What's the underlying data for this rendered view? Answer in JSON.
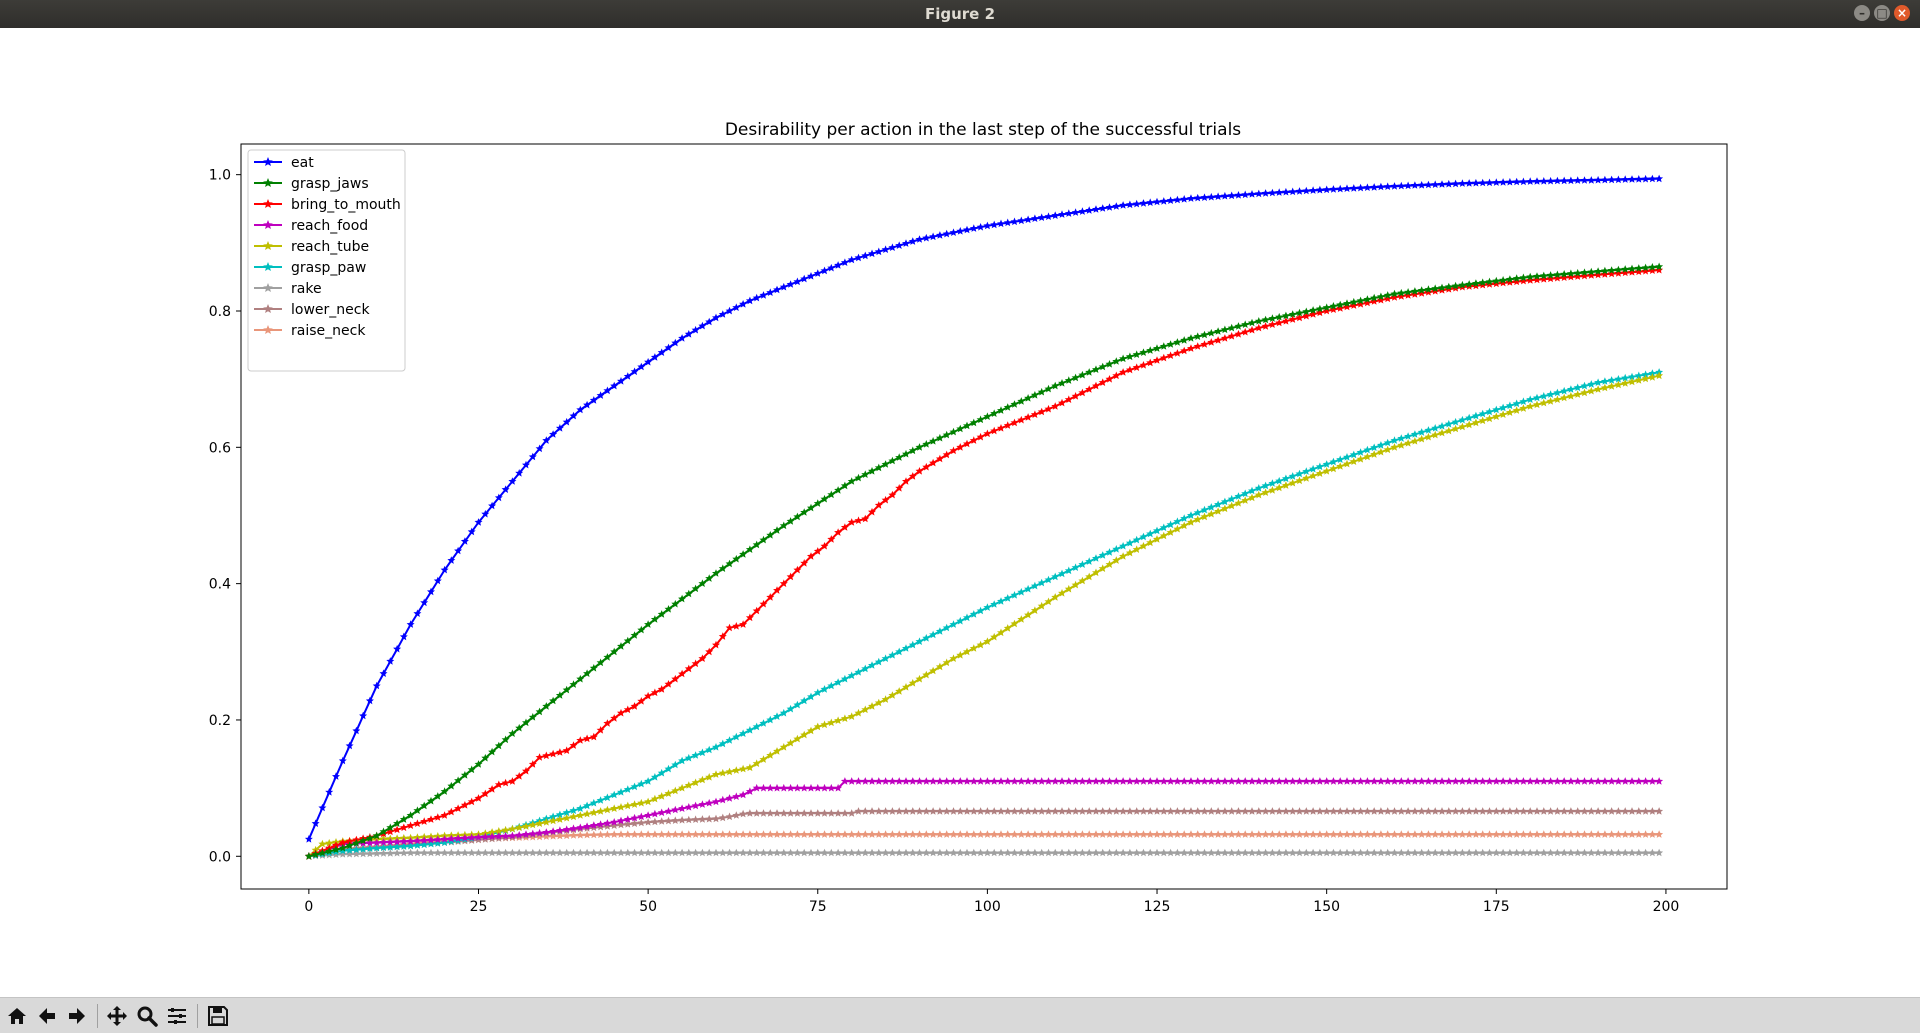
{
  "window": {
    "title": "Figure 2"
  },
  "toolbar": {
    "buttons": [
      {
        "name": "home-button",
        "icon": "home-icon"
      },
      {
        "name": "back-button",
        "icon": "arrow-left-icon"
      },
      {
        "name": "forward-button",
        "icon": "arrow-right-icon"
      },
      {
        "name": "pan-button",
        "icon": "move-icon"
      },
      {
        "name": "zoom-button",
        "icon": "magnifier-icon"
      },
      {
        "name": "configure-subplots-button",
        "icon": "sliders-icon"
      },
      {
        "name": "save-button",
        "icon": "floppy-disk-icon"
      }
    ]
  },
  "chart_data": {
    "type": "line",
    "title": "Desirability per action in the last step of the successful trials",
    "xlabel": "",
    "ylabel": "",
    "xlim": [
      -10,
      209
    ],
    "ylim": [
      -0.048,
      1.045
    ],
    "xticks": [
      0,
      25,
      50,
      75,
      100,
      125,
      150,
      175,
      200
    ],
    "yticks": [
      0.0,
      0.2,
      0.4,
      0.6,
      0.8,
      1.0
    ],
    "ytick_labels": [
      "0.0",
      "0.2",
      "0.4",
      "0.6",
      "0.8",
      "1.0"
    ],
    "grid": false,
    "legend_position": "upper left",
    "marker": "star",
    "n_points": 200,
    "series": [
      {
        "name": "eat",
        "color": "#0000ff",
        "x": [
          0,
          5,
          10,
          15,
          20,
          25,
          30,
          35,
          40,
          45,
          50,
          55,
          60,
          65,
          70,
          75,
          80,
          85,
          90,
          95,
          100,
          110,
          120,
          130,
          140,
          150,
          160,
          170,
          180,
          190,
          199
        ],
        "y": [
          0.025,
          0.14,
          0.25,
          0.34,
          0.42,
          0.49,
          0.55,
          0.61,
          0.655,
          0.69,
          0.725,
          0.76,
          0.79,
          0.815,
          0.835,
          0.855,
          0.875,
          0.89,
          0.905,
          0.915,
          0.925,
          0.94,
          0.955,
          0.965,
          0.972,
          0.978,
          0.983,
          0.987,
          0.99,
          0.992,
          0.994
        ]
      },
      {
        "name": "grasp_jaws",
        "color": "#008000",
        "x": [
          0,
          5,
          10,
          15,
          20,
          25,
          30,
          35,
          40,
          45,
          50,
          60,
          70,
          80,
          90,
          100,
          110,
          120,
          130,
          140,
          150,
          160,
          170,
          180,
          190,
          199
        ],
        "y": [
          0.0,
          0.012,
          0.03,
          0.06,
          0.095,
          0.135,
          0.18,
          0.22,
          0.26,
          0.3,
          0.34,
          0.415,
          0.485,
          0.55,
          0.6,
          0.645,
          0.69,
          0.73,
          0.76,
          0.785,
          0.805,
          0.825,
          0.838,
          0.85,
          0.858,
          0.865
        ]
      },
      {
        "name": "bring_to_mouth",
        "color": "#ff0000",
        "x": [
          0,
          5,
          10,
          15,
          20,
          25,
          28,
          30,
          32,
          34,
          36,
          38,
          40,
          42,
          44,
          46,
          48,
          50,
          52,
          54,
          56,
          58,
          60,
          62,
          64,
          66,
          68,
          70,
          72,
          74,
          76,
          78,
          80,
          82,
          84,
          86,
          88,
          90,
          95,
          100,
          110,
          120,
          130,
          140,
          150,
          160,
          170,
          180,
          190,
          199
        ],
        "y": [
          0.0,
          0.02,
          0.03,
          0.045,
          0.06,
          0.085,
          0.105,
          0.11,
          0.125,
          0.145,
          0.15,
          0.155,
          0.17,
          0.175,
          0.195,
          0.21,
          0.22,
          0.235,
          0.245,
          0.26,
          0.275,
          0.29,
          0.31,
          0.335,
          0.34,
          0.36,
          0.38,
          0.4,
          0.42,
          0.44,
          0.455,
          0.475,
          0.49,
          0.495,
          0.515,
          0.53,
          0.55,
          0.565,
          0.595,
          0.62,
          0.66,
          0.71,
          0.745,
          0.775,
          0.8,
          0.82,
          0.835,
          0.845,
          0.853,
          0.86
        ]
      },
      {
        "name": "reach_food",
        "color": "#bf00bf",
        "x": [
          0,
          5,
          10,
          15,
          20,
          25,
          30,
          35,
          40,
          45,
          50,
          55,
          60,
          62,
          64,
          65,
          66,
          67,
          70,
          75,
          78,
          79,
          80,
          90,
          100,
          120,
          140,
          160,
          180,
          199
        ],
        "y": [
          0.0,
          0.018,
          0.02,
          0.022,
          0.025,
          0.028,
          0.03,
          0.035,
          0.042,
          0.05,
          0.06,
          0.07,
          0.08,
          0.085,
          0.09,
          0.095,
          0.1,
          0.1,
          0.1,
          0.1,
          0.1,
          0.11,
          0.11,
          0.11,
          0.11,
          0.11,
          0.11,
          0.11,
          0.11,
          0.11
        ]
      },
      {
        "name": "reach_tube",
        "color": "#bfbf00",
        "x": [
          0,
          2,
          5,
          10,
          15,
          20,
          25,
          30,
          35,
          40,
          45,
          50,
          55,
          60,
          65,
          70,
          75,
          80,
          85,
          90,
          95,
          100,
          110,
          120,
          130,
          140,
          150,
          160,
          170,
          180,
          190,
          199
        ],
        "y": [
          0.0,
          0.018,
          0.022,
          0.025,
          0.027,
          0.03,
          0.032,
          0.04,
          0.05,
          0.06,
          0.07,
          0.08,
          0.1,
          0.12,
          0.13,
          0.16,
          0.19,
          0.205,
          0.23,
          0.26,
          0.29,
          0.315,
          0.38,
          0.44,
          0.49,
          0.53,
          0.565,
          0.6,
          0.63,
          0.66,
          0.685,
          0.705
        ]
      },
      {
        "name": "grasp_paw",
        "color": "#00bfbf",
        "x": [
          0,
          5,
          10,
          15,
          20,
          25,
          30,
          35,
          40,
          45,
          50,
          55,
          60,
          65,
          70,
          75,
          80,
          90,
          100,
          110,
          120,
          130,
          140,
          150,
          160,
          170,
          180,
          190,
          199
        ],
        "y": [
          0.0,
          0.008,
          0.012,
          0.015,
          0.02,
          0.028,
          0.04,
          0.055,
          0.07,
          0.09,
          0.11,
          0.14,
          0.16,
          0.185,
          0.21,
          0.24,
          0.265,
          0.315,
          0.365,
          0.41,
          0.455,
          0.5,
          0.54,
          0.575,
          0.61,
          0.64,
          0.67,
          0.695,
          0.71
        ]
      },
      {
        "name": "rake",
        "color": "#a0a0a0",
        "x": [
          0,
          5,
          10,
          15,
          20,
          199
        ],
        "y": [
          0.0,
          0.003,
          0.004,
          0.005,
          0.005,
          0.005
        ]
      },
      {
        "name": "lower_neck",
        "color": "#b08080",
        "x": [
          0,
          5,
          10,
          15,
          20,
          25,
          30,
          35,
          40,
          45,
          50,
          55,
          60,
          62,
          64,
          65,
          66,
          70,
          80,
          81,
          90,
          199
        ],
        "y": [
          0.0,
          0.01,
          0.013,
          0.016,
          0.02,
          0.024,
          0.028,
          0.034,
          0.04,
          0.045,
          0.05,
          0.053,
          0.055,
          0.058,
          0.062,
          0.063,
          0.063,
          0.063,
          0.063,
          0.066,
          0.066,
          0.066
        ]
      },
      {
        "name": "raise_neck",
        "color": "#e9967a",
        "x": [
          0,
          5,
          10,
          15,
          20,
          25,
          30,
          35,
          40,
          45,
          199
        ],
        "y": [
          0.0,
          0.01,
          0.014,
          0.018,
          0.022,
          0.025,
          0.027,
          0.029,
          0.031,
          0.032,
          0.032
        ]
      }
    ]
  }
}
